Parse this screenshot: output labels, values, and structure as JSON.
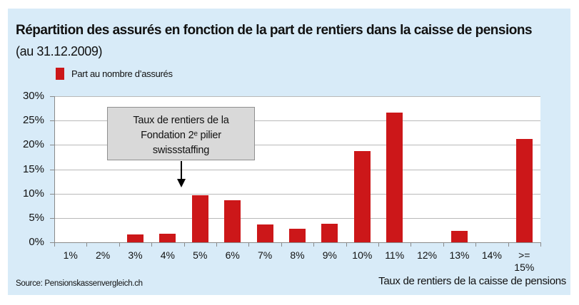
{
  "header": {
    "title": "Répartition des assurés en fonction de la part de rentiers dans la caisse de pensions",
    "subtitle": "(au 31.12.2009)"
  },
  "legend": {
    "label": "Part au nombre d’assurés",
    "color": "#cc1719"
  },
  "annotation": {
    "line1": "Taux de rentiers de la",
    "line2": "Fondation 2ᵉ pilier",
    "line3": "swissstaffing"
  },
  "footer": {
    "source": "Source: Pensionskassenvergleich.ch",
    "x_title": "Taux de rentiers de la caisse de pensions"
  },
  "colors": {
    "panel": "#d8ebf8",
    "bar": "#cc1719",
    "annotation_box": "#d9d9d9"
  },
  "chart_data": {
    "type": "bar",
    "title": "Répartition des assurés en fonction de la part de rentiers dans la caisse de pensions",
    "subtitle": "(au 31.12.2009)",
    "xlabel": "Taux de rentiers de la caisse de pensions",
    "ylabel": "",
    "ylim": [
      0,
      30
    ],
    "yticks": [
      "0%",
      "5%",
      "10%",
      "15%",
      "20%",
      "25%",
      "30%"
    ],
    "grid": true,
    "legend_position": "top-left",
    "categories": [
      "1%",
      "2%",
      "3%",
      "4%",
      "5%",
      "6%",
      "7%",
      "8%",
      "9%",
      "10%",
      "11%",
      "12%",
      "13%",
      "14%",
      ">= 15%"
    ],
    "series": [
      {
        "name": "Part au nombre d’assurés",
        "values": [
          0,
          0,
          1.6,
          1.7,
          9.7,
          8.6,
          3.7,
          2.8,
          3.8,
          18.7,
          26.7,
          0,
          2.3,
          0,
          21.2
        ]
      }
    ],
    "annotations": [
      {
        "text": "Taux de rentiers de la Fondation 2ᵉ pilier swissstaffing",
        "points_to": "between 4% and 5%"
      }
    ],
    "source": "Source: Pensionskassenvergleich.ch"
  }
}
